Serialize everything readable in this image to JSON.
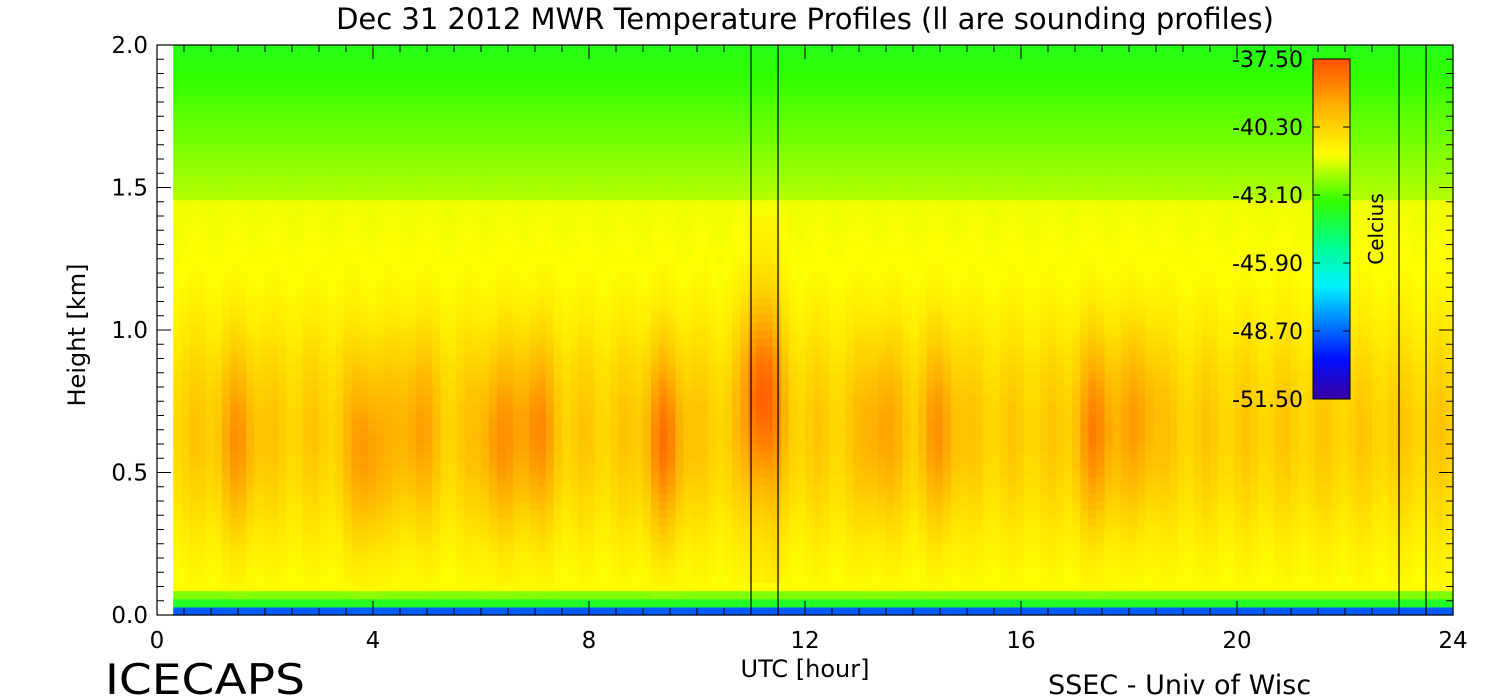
{
  "chart_data": {
    "type": "heatmap",
    "title": "Dec 31 2012 MWR Temperature Profiles (ll are sounding profiles)",
    "xlabel": "UTC [hour]",
    "ylabel": "Height [km]",
    "xlim": [
      0,
      24
    ],
    "ylim": [
      0,
      2.0
    ],
    "x_ticks": [
      "0",
      "4",
      "8",
      "12",
      "16",
      "20",
      "24"
    ],
    "y_ticks": [
      "0.0",
      "0.5",
      "1.0",
      "1.5",
      "2.0"
    ],
    "colorbar": {
      "label": "Celcius",
      "min": -51.5,
      "max": -37.5,
      "ticks": [
        "-37.50",
        "-40.30",
        "-43.10",
        "-45.90",
        "-48.70",
        "-51.50"
      ]
    },
    "sounding_times_utc": [
      11.0,
      11.5,
      23.0,
      23.5
    ],
    "warm_core_height_km": 0.65,
    "warm_spots": [
      {
        "time": 1.5,
        "height": 0.6,
        "temp": -39.8
      },
      {
        "time": 3.9,
        "height": 0.55,
        "temp": -39.6
      },
      {
        "time": 4.8,
        "height": 0.65,
        "temp": -39.9
      },
      {
        "time": 6.3,
        "height": 0.6,
        "temp": -39.7
      },
      {
        "time": 7.0,
        "height": 0.65,
        "temp": -39.5
      },
      {
        "time": 9.4,
        "height": 0.6,
        "temp": -39.2
      },
      {
        "time": 11.2,
        "height": 0.8,
        "temp": -38.6
      },
      {
        "time": 13.4,
        "height": 0.65,
        "temp": -39.9
      },
      {
        "time": 14.5,
        "height": 0.65,
        "temp": -39.8
      },
      {
        "time": 17.4,
        "height": 0.65,
        "temp": -39.4
      },
      {
        "time": 18.2,
        "height": 0.7,
        "temp": -39.9
      }
    ]
  },
  "footer": {
    "left_label": "ICECAPS",
    "right_label": "SSEC - Univ of Wisc"
  }
}
